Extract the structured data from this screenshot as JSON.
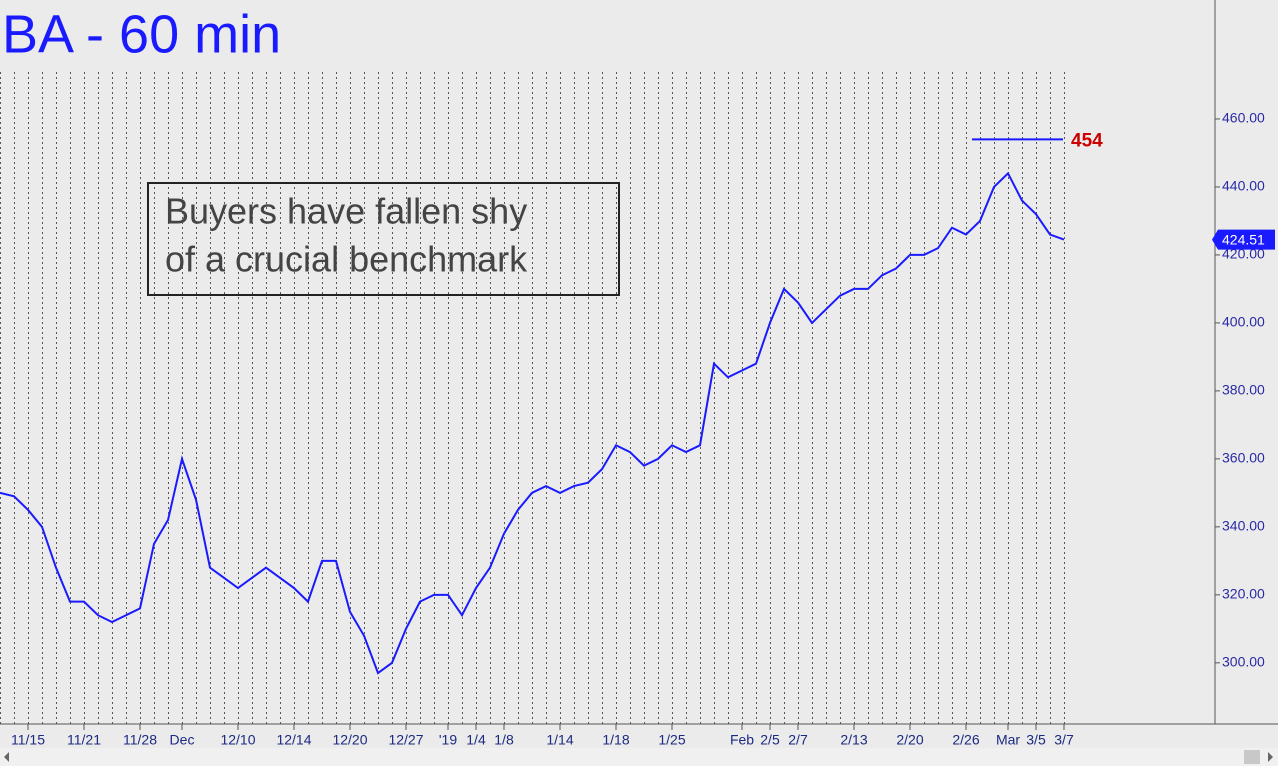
{
  "chart_data": {
    "type": "line",
    "title": "BA - 60 min",
    "annotation": [
      "Buyers have fallen shy",
      "of a crucial benchmark"
    ],
    "resistance_level": 454,
    "last_price": 424.51,
    "categories": [
      null,
      null,
      "11/15",
      null,
      null,
      null,
      "11/21",
      null,
      null,
      null,
      "11/28",
      null,
      null,
      "Dec",
      null,
      null,
      null,
      "12/10",
      null,
      null,
      null,
      "12/14",
      null,
      null,
      null,
      "12/20",
      null,
      null,
      null,
      "12/27",
      null,
      null,
      "'19",
      null,
      "1/4",
      null,
      "1/8",
      null,
      null,
      null,
      "1/14",
      null,
      null,
      null,
      "1/18",
      null,
      null,
      null,
      "1/25",
      null,
      null,
      null,
      null,
      "Feb",
      null,
      "2/5",
      null,
      "2/7",
      null,
      null,
      null,
      "2/13",
      null,
      null,
      null,
      "2/20",
      null,
      null,
      null,
      "2/26",
      null,
      null,
      "Mar",
      null,
      "3/5",
      null,
      "3/7"
    ],
    "series": [
      {
        "name": "BA",
        "color": "#1a1aff",
        "values": [
          350,
          349,
          345,
          340,
          328,
          318,
          318,
          314,
          312,
          314,
          316,
          335,
          342,
          360,
          348,
          328,
          325,
          322,
          325,
          328,
          325,
          322,
          318,
          330,
          330,
          315,
          308,
          297,
          300,
          310,
          318,
          320,
          320,
          314,
          322,
          328,
          338,
          345,
          350,
          352,
          350,
          352,
          353,
          357,
          364,
          362,
          358,
          360,
          364,
          362,
          364,
          388,
          384,
          386,
          388,
          400,
          410,
          406,
          400,
          404,
          408,
          410,
          410,
          414,
          416,
          420,
          420,
          422,
          428,
          426,
          430,
          440,
          444,
          436,
          432,
          426,
          424.51
        ]
      }
    ],
    "ylim": [
      282,
      495
    ],
    "yticks": [
      {
        "value": 300,
        "label": "300.00"
      },
      {
        "value": 320,
        "label": "320.00"
      },
      {
        "value": 340,
        "label": "340.00"
      },
      {
        "value": 360,
        "label": "360.00"
      },
      {
        "value": 380,
        "label": "380.00"
      },
      {
        "value": 400,
        "label": "400.00"
      },
      {
        "value": 420,
        "label": "420.00"
      },
      {
        "value": 440,
        "label": "440.00"
      },
      {
        "value": 460,
        "label": "460.00"
      }
    ],
    "grid": true
  }
}
